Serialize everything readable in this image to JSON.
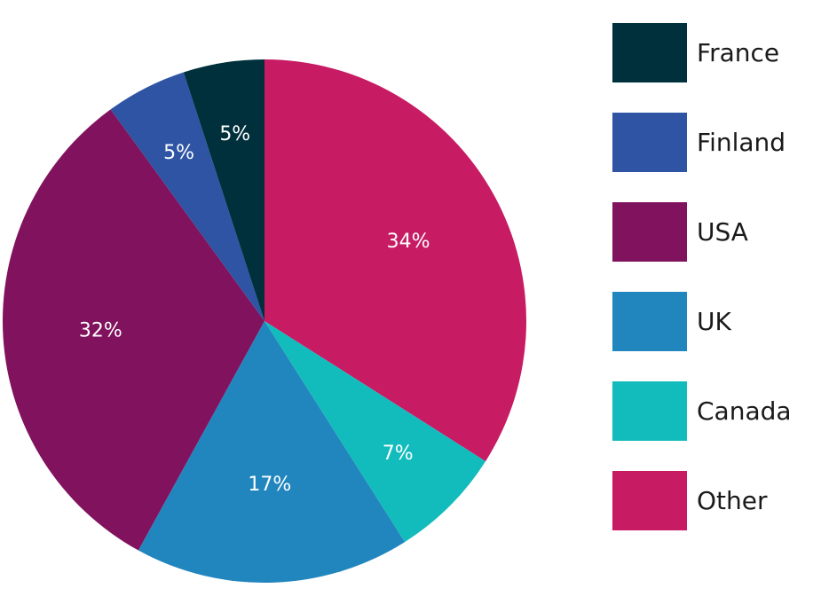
{
  "chart_data": {
    "type": "pie",
    "title": "",
    "legend_position": "right",
    "slices": [
      {
        "label": "Other",
        "value": 34,
        "display": "34%",
        "color": "#C71B63"
      },
      {
        "label": "Canada",
        "value": 7,
        "display": "7%",
        "color": "#13BCBC"
      },
      {
        "label": "UK",
        "value": 17,
        "display": "17%",
        "color": "#2286BE"
      },
      {
        "label": "USA",
        "value": 32,
        "display": "32%",
        "color": "#80125E"
      },
      {
        "label": "Finland",
        "value": 5,
        "display": "5%",
        "color": "#2E54A3"
      },
      {
        "label": "France",
        "value": 5,
        "display": "5%",
        "color": "#00303C"
      }
    ],
    "legend": [
      {
        "label": "France",
        "color": "#00303C"
      },
      {
        "label": "Finland",
        "color": "#2E54A3"
      },
      {
        "label": "USA",
        "color": "#80125E"
      },
      {
        "label": "UK",
        "color": "#2286BE"
      },
      {
        "label": "Canada",
        "color": "#13BCBC"
      },
      {
        "label": "Other",
        "color": "#C71B63"
      }
    ]
  }
}
